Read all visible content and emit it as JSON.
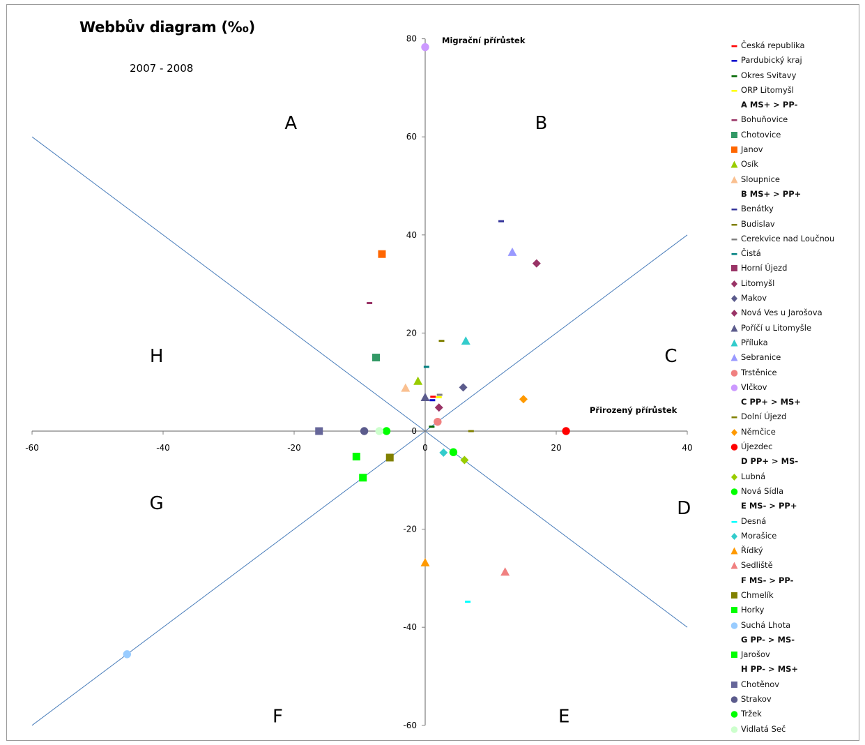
{
  "title": "Webbův diagram (‰)",
  "subtitle": "2007 - 2008",
  "chart_data": {
    "type": "scatter",
    "title": "Webbův diagram (‰)",
    "subtitle": "2007 - 2008",
    "xlabel": "Přirozený přírůstek",
    "ylabel": "Migrační přírůstek",
    "xlim": [
      -60,
      40
    ],
    "ylim": [
      -60,
      80
    ],
    "xticks": [
      "-60",
      "-40",
      "-20",
      "0",
      "20",
      "40"
    ],
    "yticks": [
      "-60",
      "-40",
      "-20",
      "0",
      "20",
      "40",
      "60",
      "80"
    ],
    "grid": false,
    "legend_position": "right",
    "reference_lines": [
      {
        "from": [
          -60,
          60
        ],
        "to": [
          40,
          -40
        ]
      },
      {
        "from": [
          -60,
          -60
        ],
        "to": [
          40,
          40
        ]
      }
    ],
    "region_labels": [
      {
        "text": "A",
        "x": -20.5,
        "y": 63
      },
      {
        "text": "B",
        "x": 17.7,
        "y": 63
      },
      {
        "text": "C",
        "x": 37.5,
        "y": 15.5
      },
      {
        "text": "D",
        "x": 39.5,
        "y": -15.5
      },
      {
        "text": "E",
        "x": 21.2,
        "y": -58
      },
      {
        "text": "F",
        "x": -22.5,
        "y": -58
      },
      {
        "text": "G",
        "x": -41,
        "y": -14.5
      },
      {
        "text": "H",
        "x": -41,
        "y": 15.5
      }
    ],
    "series": [
      {
        "name": "Česká republika",
        "marker": "dash",
        "color": "#ff0000",
        "x": [
          1.2
        ],
        "y": [
          7.0
        ]
      },
      {
        "name": "Pardubický kraj",
        "marker": "dash",
        "color": "#0000cc",
        "x": [
          1.1
        ],
        "y": [
          6.3
        ]
      },
      {
        "name": "Okres Svitavy",
        "marker": "dash",
        "color": "#006600",
        "x": [
          1.0
        ],
        "y": [
          0.9
        ]
      },
      {
        "name": "ORP Litomyšl",
        "marker": "dash",
        "color": "#ffff00",
        "x": [
          2.1
        ],
        "y": [
          6.9
        ]
      },
      {
        "name": "A MS+ > PP-",
        "header": true
      },
      {
        "name": "Bohuňovice",
        "marker": "dash",
        "color": "#993366",
        "x": [
          -8.5
        ],
        "y": [
          26.1
        ]
      },
      {
        "name": "Chotovice",
        "marker": "square",
        "color": "#339966",
        "x": [
          -7.5
        ],
        "y": [
          15.0
        ]
      },
      {
        "name": "Janov",
        "marker": "square",
        "color": "#ff6600",
        "x": [
          -6.6
        ],
        "y": [
          36.1
        ]
      },
      {
        "name": "Osík",
        "marker": "triangle",
        "color": "#99cc00",
        "x": [
          -1.1
        ],
        "y": [
          10.2
        ]
      },
      {
        "name": "Sloupnice",
        "marker": "triangle",
        "color": "#fac090",
        "x": [
          -3.0
        ],
        "y": [
          8.8
        ]
      },
      {
        "name": "B MS+ > PP+",
        "header": true
      },
      {
        "name": "Benátky",
        "marker": "dash",
        "color": "#333399",
        "x": [
          11.6
        ],
        "y": [
          42.8
        ]
      },
      {
        "name": "Budislav",
        "marker": "dash",
        "color": "#808000",
        "x": [
          2.5
        ],
        "y": [
          18.4
        ]
      },
      {
        "name": "Cerekvice nad Loučnou",
        "marker": "dash",
        "color": "#7f7f7f",
        "x": [
          2.2
        ],
        "y": [
          7.4
        ]
      },
      {
        "name": "Čistá",
        "marker": "dash",
        "color": "#008080",
        "x": [
          0.2
        ],
        "y": [
          13.1
        ]
      },
      {
        "name": "Horní Újezd",
        "marker": "square",
        "color": "#993366",
        "x": [],
        "y": []
      },
      {
        "name": "Litomyšl",
        "marker": "diamond",
        "color": "#993366",
        "x": [
          17.0
        ],
        "y": [
          34.2
        ]
      },
      {
        "name": "Makov",
        "marker": "diamond",
        "color": "#5b5b8c",
        "x": [
          5.8
        ],
        "y": [
          8.9
        ]
      },
      {
        "name": "Nová Ves u Jarošova",
        "marker": "diamond",
        "color": "#993366",
        "x": [
          2.1
        ],
        "y": [
          4.8
        ]
      },
      {
        "name": "Poříčí u Litomyšle",
        "marker": "triangle",
        "color": "#5b5b8c",
        "x": [
          0.0
        ],
        "y": [
          6.9
        ]
      },
      {
        "name": "Příluka",
        "marker": "triangle",
        "color": "#33cccc",
        "x": [
          6.2
        ],
        "y": [
          18.4
        ]
      },
      {
        "name": "Sebranice",
        "marker": "triangle",
        "color": "#9999ff",
        "x": [
          13.3
        ],
        "y": [
          36.5
        ]
      },
      {
        "name": "Trstěnice",
        "marker": "circle",
        "color": "#f08080",
        "x": [
          1.9
        ],
        "y": [
          1.9
        ]
      },
      {
        "name": "Vlčkov",
        "marker": "circle",
        "color": "#cc99ff",
        "x": [
          0.0
        ],
        "y": [
          78.3
        ]
      },
      {
        "name": "C PP+ > MS+",
        "header": true
      },
      {
        "name": "Dolní Újezd",
        "marker": "dash",
        "color": "#808000",
        "x": [
          7.0
        ],
        "y": [
          0.0
        ]
      },
      {
        "name": "Němčice",
        "marker": "diamond",
        "color": "#ff9900",
        "x": [
          15.0
        ],
        "y": [
          6.5
        ]
      },
      {
        "name": "Újezdec",
        "marker": "circle",
        "color": "#ff0000",
        "x": [
          21.5
        ],
        "y": [
          0.0
        ]
      },
      {
        "name": "D PP+ > MS-",
        "header": true
      },
      {
        "name": "Lubná",
        "marker": "diamond",
        "color": "#99cc00",
        "x": [
          6.0
        ],
        "y": [
          -5.9
        ]
      },
      {
        "name": "Nová Sídla",
        "marker": "circle",
        "color": "#00ff00",
        "x": [
          4.3
        ],
        "y": [
          -4.3
        ]
      },
      {
        "name": "E MS- > PP+",
        "header": true
      },
      {
        "name": "Desná",
        "marker": "dash",
        "color": "#00ffff",
        "x": [
          6.5
        ],
        "y": [
          -34.8
        ]
      },
      {
        "name": "Morašice",
        "marker": "diamond",
        "color": "#33cccc",
        "x": [
          2.8
        ],
        "y": [
          -4.4
        ]
      },
      {
        "name": "Řídký",
        "marker": "triangle",
        "color": "#ff9900",
        "x": [
          0.0
        ],
        "y": [
          -26.8
        ]
      },
      {
        "name": "Sedliště",
        "marker": "triangle",
        "color": "#f08080",
        "x": [
          12.2
        ],
        "y": [
          -28.7
        ]
      },
      {
        "name": "F MS- > PP-",
        "header": true
      },
      {
        "name": "Chmelík",
        "marker": "square",
        "color": "#808000",
        "x": [
          -5.4
        ],
        "y": [
          -5.4
        ]
      },
      {
        "name": "Horky",
        "marker": "square",
        "color": "#00ff00",
        "x": [
          -10.5
        ],
        "y": [
          -5.2
        ]
      },
      {
        "name": "Suchá Lhota",
        "marker": "circle",
        "color": "#99ccff",
        "x": [
          -45.5
        ],
        "y": [
          -45.5
        ]
      },
      {
        "name": "G PP- > MS-",
        "header": true
      },
      {
        "name": "Jarošov",
        "marker": "square",
        "color": "#00ff00",
        "x": [
          -9.5
        ],
        "y": [
          -9.5
        ]
      },
      {
        "name": "H PP- > MS+",
        "header": true
      },
      {
        "name": "Chotěnov",
        "marker": "square",
        "color": "#666699",
        "x": [
          -16.2
        ],
        "y": [
          0.0
        ]
      },
      {
        "name": "Strakov",
        "marker": "circle",
        "color": "#5b5b8c",
        "x": [
          -9.3
        ],
        "y": [
          0.0
        ]
      },
      {
        "name": "Tržek",
        "marker": "circle",
        "color": "#00ff00",
        "x": [
          -5.9
        ],
        "y": [
          0.0
        ]
      },
      {
        "name": "Vidlatá Seč",
        "marker": "circle",
        "color": "#ccffcc",
        "x": [
          -7.0
        ],
        "y": [
          0.0
        ]
      }
    ]
  }
}
